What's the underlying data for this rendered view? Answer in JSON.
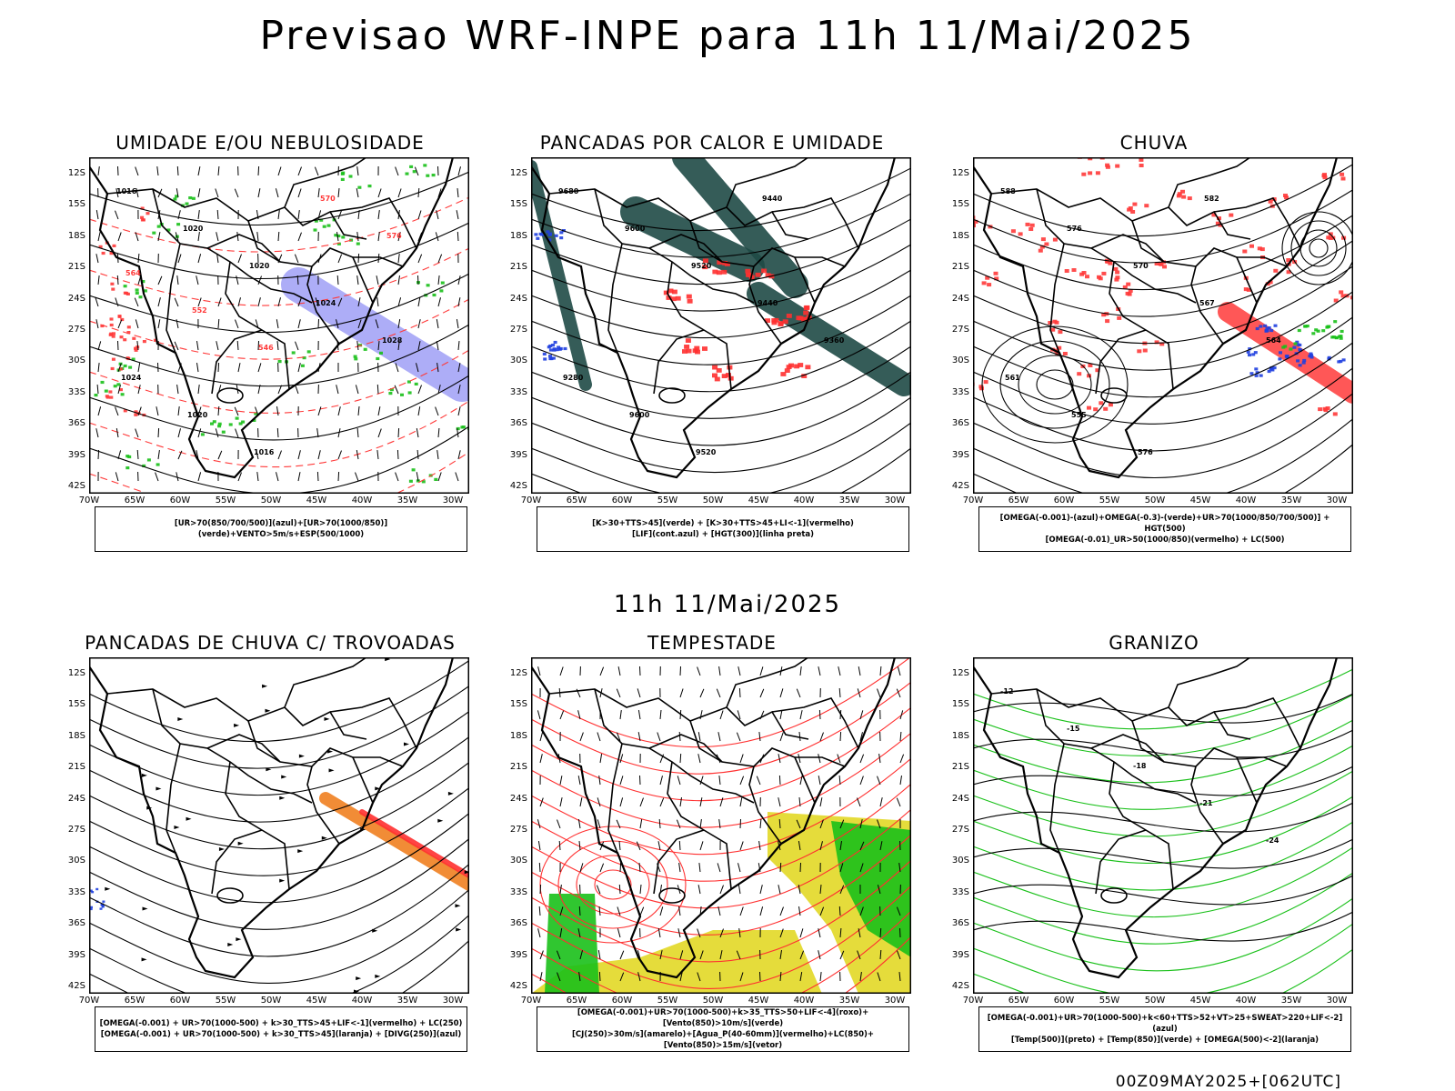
{
  "header": {
    "title": "Previsao WRF-INPE  para 11h 11/Mai/2025"
  },
  "middle": {
    "title": "11h 11/Mai/2025"
  },
  "footer": {
    "run": "00Z09MAY2025+[062UTC]"
  },
  "axes": {
    "lat_ticks": [
      "12S",
      "15S",
      "18S",
      "21S",
      "24S",
      "27S",
      "30S",
      "33S",
      "36S",
      "39S",
      "42S"
    ],
    "lon_ticks": [
      "70W",
      "65W",
      "60W",
      "55W",
      "50W",
      "45W",
      "40W",
      "35W",
      "30W"
    ]
  },
  "panels": [
    {
      "title": "UMIDADE E/OU NEBULOSIDADE",
      "legend": [
        "[UR>70(850/700/500)](azul)+[UR>70(1000/850)](verde)+VENTO>5m/s+ESP(500/1000)"
      ],
      "colors": [
        "#6a6af0",
        "#19c019",
        "#ff3a3a"
      ],
      "labels": [
        "1016",
        "1020",
        "1020",
        "1024",
        "1028",
        "1024",
        "1020",
        "1016",
        "570",
        "576",
        "564",
        "552",
        "546"
      ]
    },
    {
      "title": "PANCADAS POR CALOR E UMIDADE",
      "legend": [
        "[K>30+TTS>45](verde) + [K>30+TTS>45+LI<-1](vermelho)",
        "[LIF](cont.azul) + [HGT(300)](linha preta)"
      ],
      "colors": [
        "#1f4a46",
        "#ff3030",
        "#2040e0"
      ],
      "labels": [
        "9680",
        "9600",
        "9520",
        "9440",
        "9360",
        "9280",
        "9600",
        "9520",
        "9440"
      ]
    },
    {
      "title": "CHUVA",
      "legend": [
        "[OMEGA(-0.001)-(azul)+OMEGA(-0.3)-(verde)+UR>70(1000/850/700/500)] + HGT(500)",
        "[OMEGA(-0.01)_UR>50(1000/850)(vermelho) + LC(500)"
      ],
      "colors": [
        "#ff3a3a",
        "#2040e0",
        "#19c019"
      ],
      "labels": [
        "588",
        "576",
        "570",
        "567",
        "564",
        "561",
        "555",
        "576",
        "582"
      ]
    },
    {
      "title": "PANCADAS DE CHUVA C/ TROVOADAS",
      "legend": [
        "[OMEGA(-0.001) + UR>70(1000-500) + k>30_TTS>45+LIF<-1](vermelho) + LC(250)",
        "[OMEGA(-0.001) + UR>70(1000-500) + k>30_TTS>45](laranja) + [DIVG(250)](azul)"
      ],
      "colors": [
        "#ff3030",
        "#f08020",
        "#2040e0"
      ],
      "labels": []
    },
    {
      "title": "TEMPESTADE",
      "legend": [
        "[OMEGA(-0.001)+UR>70(1000-500)+k>35_TTS>50+LIF<-4](roxo)+[Vento(850)>10m/s](verde)",
        "[CJ(250)>30m/s](amarelo)+[Agua_P(40-60mm)](vermelho)+LC(850)+[Vento(850)>15m/s](vetor)"
      ],
      "colors": [
        "#e2d826",
        "#19c019",
        "#ff3030"
      ],
      "labels": []
    },
    {
      "title": "GRANIZO",
      "legend": [
        "[OMEGA(-0.001)+UR>70(1000-500)+k<60+TTS>52+VT>25+SWEAT>220+LIF<-2](azul)",
        "[Temp(500)](preto) + [Temp(850)](verde) + [OMEGA(500)<-2](laranja)"
      ],
      "colors": [
        "#19c019",
        "#000000",
        "#f08020"
      ],
      "labels": [
        "-12",
        "-15",
        "-18",
        "-21",
        "-24"
      ]
    }
  ]
}
